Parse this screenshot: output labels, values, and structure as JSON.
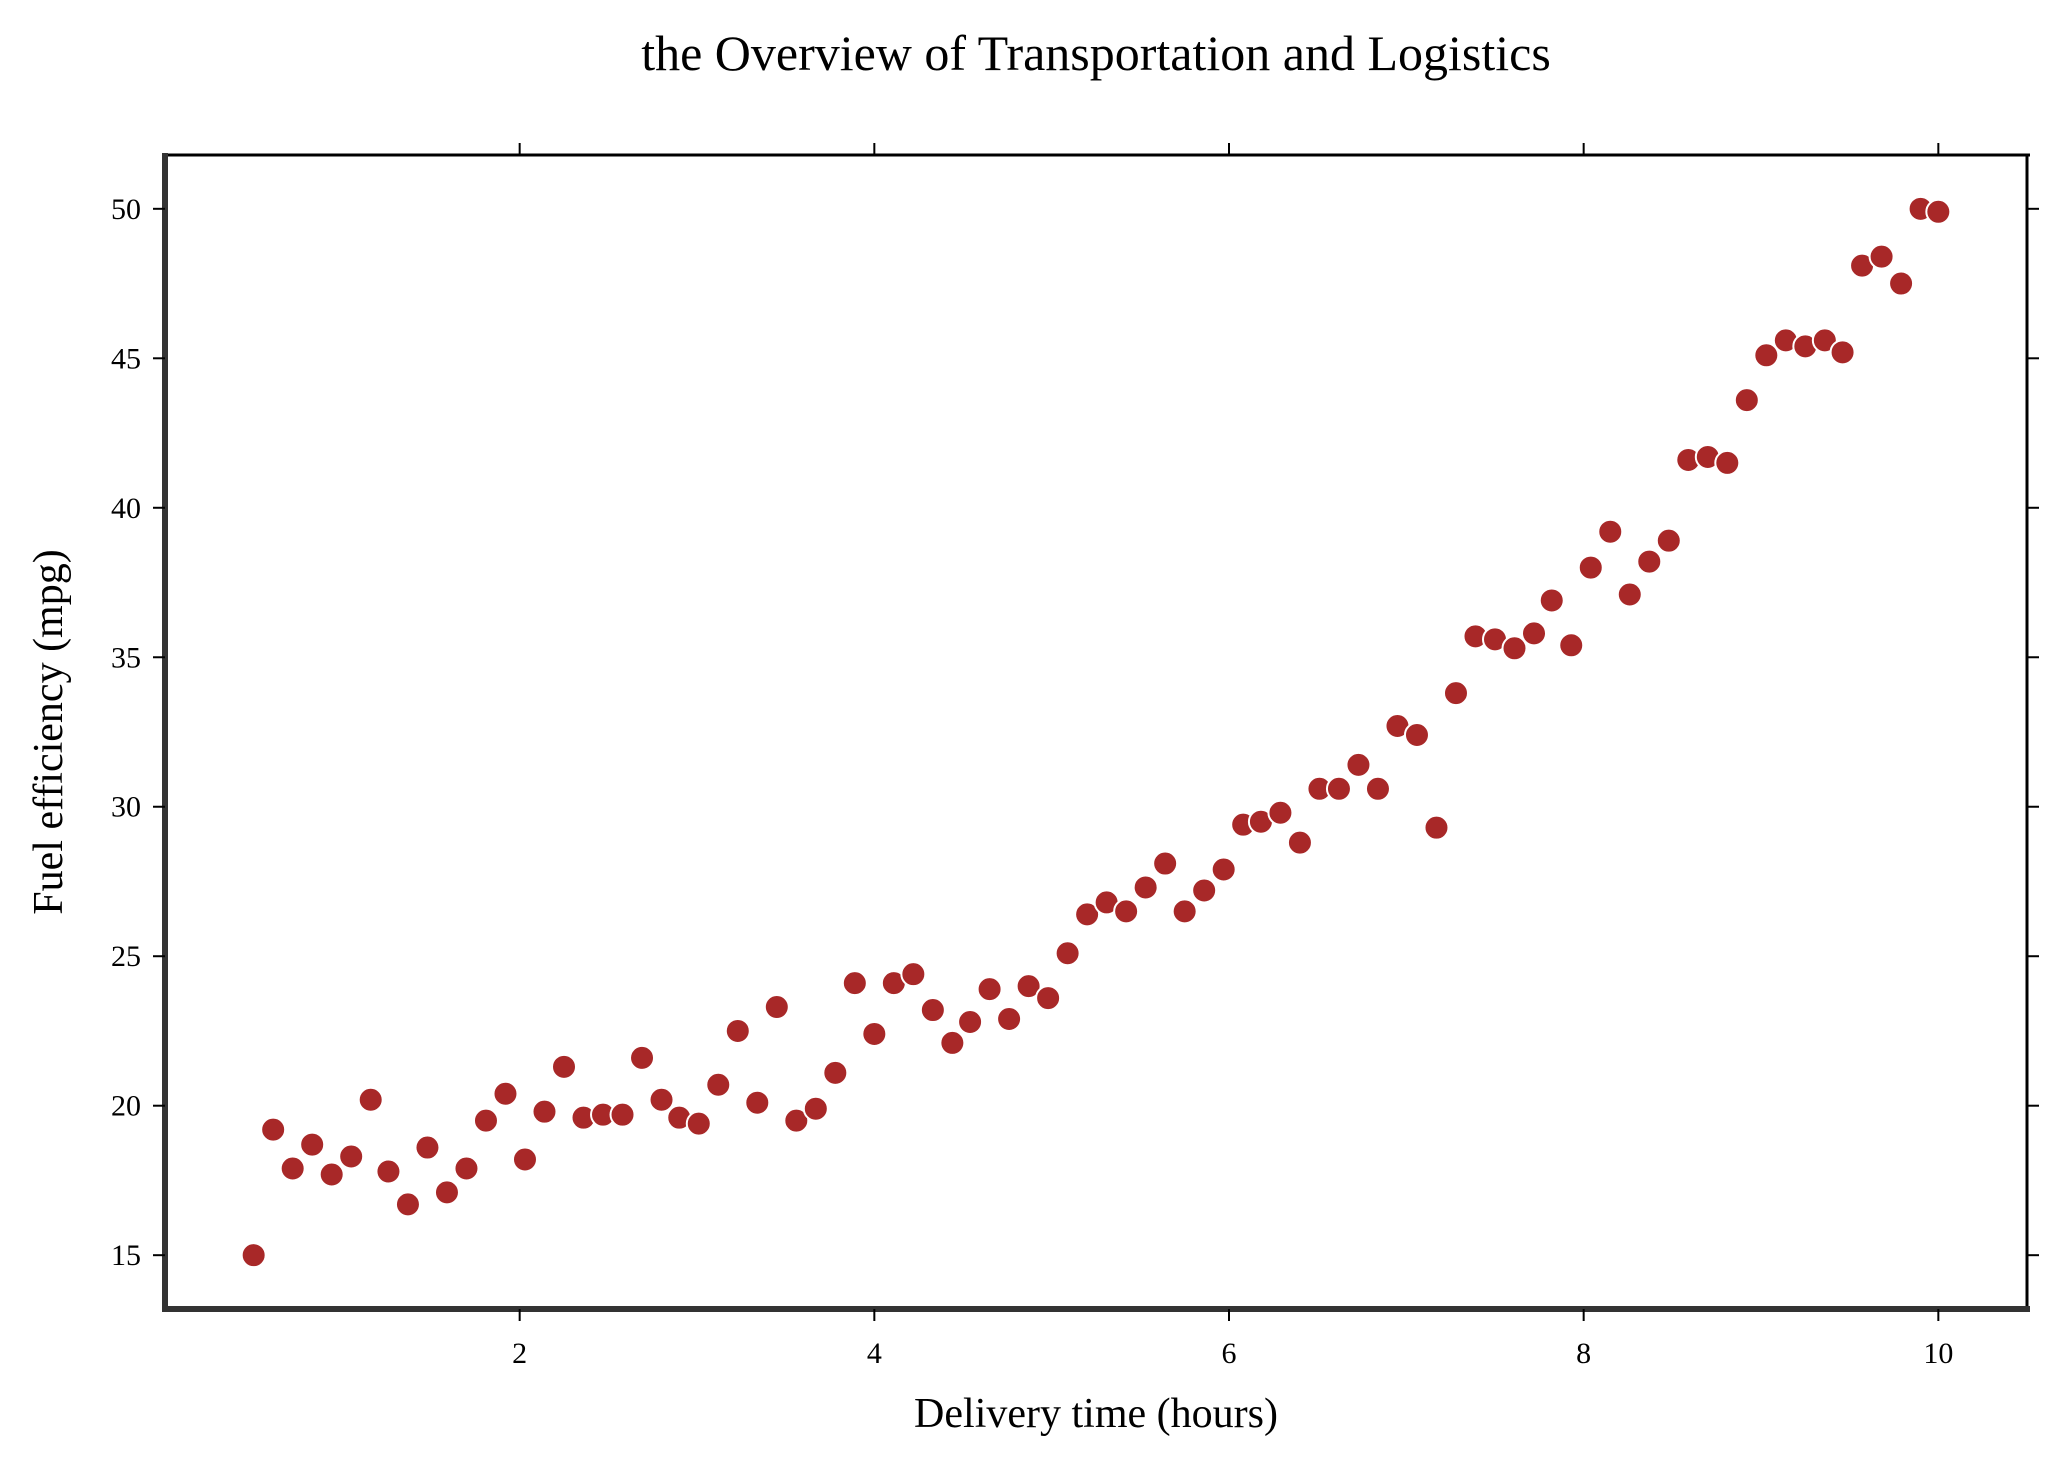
{
  "chart_data": {
    "type": "scatter",
    "title": "the Overview of Transportation and Logistics",
    "xlabel": "Delivery time (hours)",
    "ylabel": "Fuel efficiency (mpg)",
    "xlim": [
      0.0,
      10.5
    ],
    "ylim": [
      13.2,
      51.8
    ],
    "xticks": [
      2,
      4,
      6,
      8,
      10
    ],
    "yticks": [
      15,
      20,
      25,
      30,
      35,
      40,
      45,
      50
    ],
    "xtick_labels": [
      "2",
      "4",
      "6",
      "8",
      "10"
    ],
    "ytick_labels": [
      "15",
      "20",
      "25",
      "30",
      "35",
      "40",
      "45",
      "50"
    ],
    "grid": false,
    "marker_color": "#a82828",
    "marker_edge_color": "#ffffff",
    "points": [
      [
        0.5,
        15.0
      ],
      [
        0.61,
        19.2
      ],
      [
        0.72,
        17.9
      ],
      [
        0.83,
        18.7
      ],
      [
        0.94,
        17.7
      ],
      [
        1.05,
        18.3
      ],
      [
        1.16,
        20.2
      ],
      [
        1.26,
        17.8
      ],
      [
        1.37,
        16.7
      ],
      [
        1.48,
        18.6
      ],
      [
        1.59,
        17.1
      ],
      [
        1.7,
        17.9
      ],
      [
        1.81,
        19.5
      ],
      [
        1.92,
        20.4
      ],
      [
        2.03,
        18.2
      ],
      [
        2.14,
        19.8
      ],
      [
        2.25,
        21.3
      ],
      [
        2.36,
        19.6
      ],
      [
        2.47,
        19.7
      ],
      [
        2.58,
        19.7
      ],
      [
        2.69,
        21.6
      ],
      [
        2.8,
        20.2
      ],
      [
        2.9,
        19.6
      ],
      [
        3.01,
        19.4
      ],
      [
        3.12,
        20.7
      ],
      [
        3.23,
        22.5
      ],
      [
        3.34,
        20.1
      ],
      [
        3.45,
        23.3
      ],
      [
        3.56,
        19.5
      ],
      [
        3.67,
        19.9
      ],
      [
        3.78,
        21.1
      ],
      [
        3.89,
        24.1
      ],
      [
        4.0,
        22.4
      ],
      [
        4.11,
        24.1
      ],
      [
        4.22,
        24.4
      ],
      [
        4.33,
        23.2
      ],
      [
        4.44,
        22.1
      ],
      [
        4.54,
        22.8
      ],
      [
        4.65,
        23.9
      ],
      [
        4.76,
        22.9
      ],
      [
        4.87,
        24.0
      ],
      [
        4.98,
        23.6
      ],
      [
        5.09,
        25.1
      ],
      [
        5.2,
        26.4
      ],
      [
        5.31,
        26.8
      ],
      [
        5.42,
        26.5
      ],
      [
        5.53,
        27.3
      ],
      [
        5.64,
        28.1
      ],
      [
        5.75,
        26.5
      ],
      [
        5.86,
        27.2
      ],
      [
        5.97,
        27.9
      ],
      [
        6.08,
        29.4
      ],
      [
        6.18,
        29.5
      ],
      [
        6.29,
        29.8
      ],
      [
        6.4,
        28.8
      ],
      [
        6.51,
        30.6
      ],
      [
        6.62,
        30.6
      ],
      [
        6.73,
        31.4
      ],
      [
        6.84,
        30.6
      ],
      [
        6.95,
        32.7
      ],
      [
        7.06,
        32.4
      ],
      [
        7.17,
        29.3
      ],
      [
        7.28,
        33.8
      ],
      [
        7.39,
        35.7
      ],
      [
        7.5,
        35.6
      ],
      [
        7.61,
        35.3
      ],
      [
        7.72,
        35.8
      ],
      [
        7.82,
        36.9
      ],
      [
        7.93,
        35.4
      ],
      [
        8.04,
        38.0
      ],
      [
        8.15,
        39.2
      ],
      [
        8.26,
        37.1
      ],
      [
        8.37,
        38.2
      ],
      [
        8.48,
        38.9
      ],
      [
        8.59,
        41.6
      ],
      [
        8.7,
        41.7
      ],
      [
        8.81,
        41.5
      ],
      [
        8.92,
        43.6
      ],
      [
        9.03,
        45.1
      ],
      [
        9.14,
        45.6
      ],
      [
        9.25,
        45.4
      ],
      [
        9.36,
        45.6
      ],
      [
        9.46,
        45.2
      ],
      [
        9.57,
        48.1
      ],
      [
        9.68,
        48.4
      ],
      [
        9.79,
        47.5
      ],
      [
        9.9,
        50.0
      ],
      [
        10.0,
        49.9
      ]
    ]
  }
}
